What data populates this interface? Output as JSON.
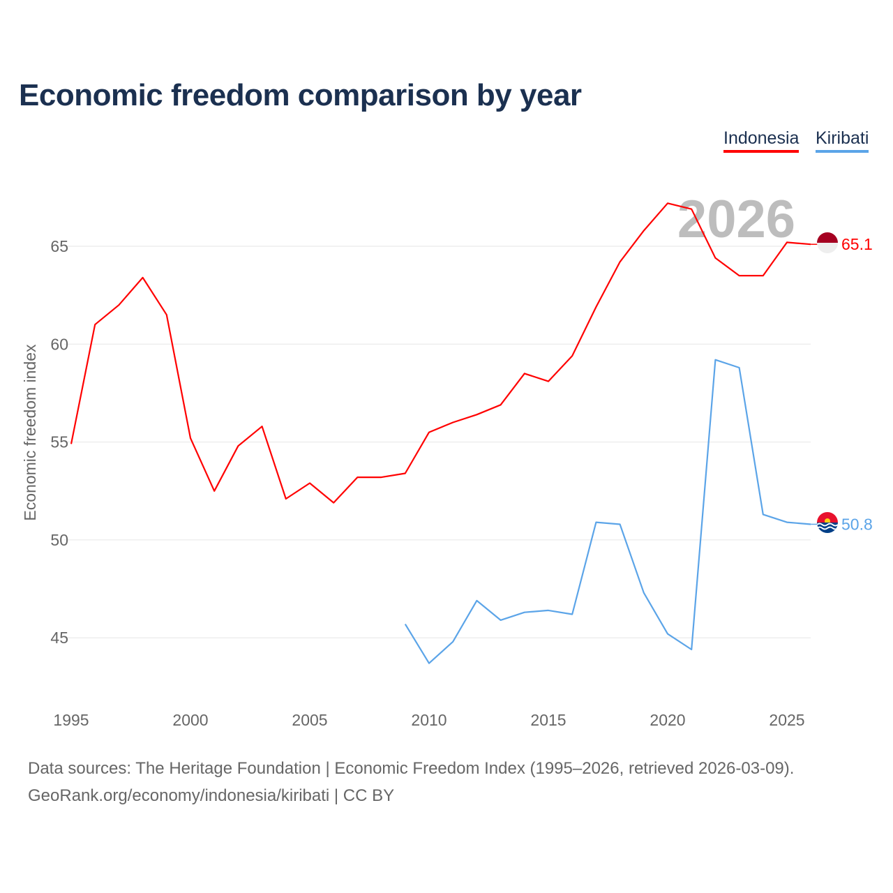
{
  "title": "Economic freedom comparison by year",
  "legend": [
    "Indonesia",
    "Kiribati"
  ],
  "watermark_year": "2026",
  "sources": {
    "line1": "Data sources: The Heritage Foundation | Economic Freedom Index (1995–2026, retrieved 2026-03-09).",
    "line2": "GeoRank.org/economy/indonesia/kiribati | CC BY"
  },
  "chart_data": {
    "type": "line",
    "title": "Economic freedom comparison by year",
    "xlabel": "",
    "ylabel": "Economic freedom index",
    "xlim": [
      1995,
      2026
    ],
    "ylim": [
      42.3,
      68.6
    ],
    "xticks": [
      "1995",
      "2000",
      "2005",
      "2010",
      "2015",
      "2020",
      "2025"
    ],
    "yticks": [
      "45",
      "50",
      "55",
      "60",
      "65"
    ],
    "grid": true,
    "legend_position": "top-right",
    "series": [
      {
        "name": "Indonesia",
        "color": "#ff0000",
        "end_label": "65.1",
        "x": [
          1995,
          1996,
          1997,
          1998,
          1999,
          2000,
          2001,
          2002,
          2003,
          2004,
          2005,
          2006,
          2007,
          2008,
          2009,
          2010,
          2011,
          2012,
          2013,
          2014,
          2015,
          2016,
          2017,
          2018,
          2019,
          2020,
          2021,
          2022,
          2023,
          2024,
          2025,
          2026
        ],
        "values": [
          54.9,
          61.0,
          62.0,
          63.4,
          61.5,
          55.2,
          52.5,
          54.8,
          55.8,
          52.1,
          52.9,
          51.9,
          53.2,
          53.2,
          53.4,
          55.5,
          56.0,
          56.4,
          56.9,
          58.5,
          58.1,
          59.4,
          61.9,
          64.2,
          65.8,
          67.2,
          66.9,
          64.4,
          63.5,
          63.5,
          65.2,
          65.1
        ]
      },
      {
        "name": "Kiribati",
        "color": "#5ba4e8",
        "end_label": "50.8",
        "x": [
          2009,
          2010,
          2011,
          2012,
          2013,
          2014,
          2015,
          2016,
          2017,
          2018,
          2019,
          2020,
          2021,
          2022,
          2023,
          2024,
          2025,
          2026
        ],
        "values": [
          45.7,
          43.7,
          44.8,
          46.9,
          45.9,
          46.3,
          46.4,
          46.2,
          50.9,
          50.8,
          47.3,
          45.2,
          44.4,
          59.2,
          58.8,
          51.3,
          50.9,
          50.8
        ]
      }
    ]
  }
}
